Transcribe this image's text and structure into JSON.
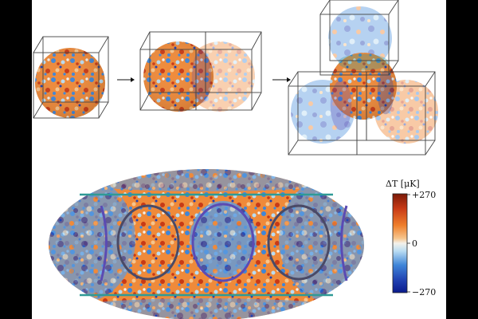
{
  "colorbar": {
    "title": "ΔT [μK]",
    "tick_max": "+270",
    "tick_mid": "0",
    "tick_min": "−270"
  },
  "palette": {
    "deep_blue": "#1f3fb0",
    "blue": "#3f86d8",
    "light_blue": "#b9dcf2",
    "white": "#f4f1ea",
    "light_orange": "#f6c58d",
    "orange": "#ef7f2b",
    "red": "#c83a16",
    "dark_red": "#8a1f0b",
    "circle_purple": "#5b4bb3",
    "circle_dark": "#4a4a66",
    "band_teal": "#2f9a96",
    "arrow": "#111111"
  },
  "top_row": {
    "panels": [
      "single-cube",
      "two-cubes",
      "four-cubes"
    ],
    "arrows": 2
  }
}
